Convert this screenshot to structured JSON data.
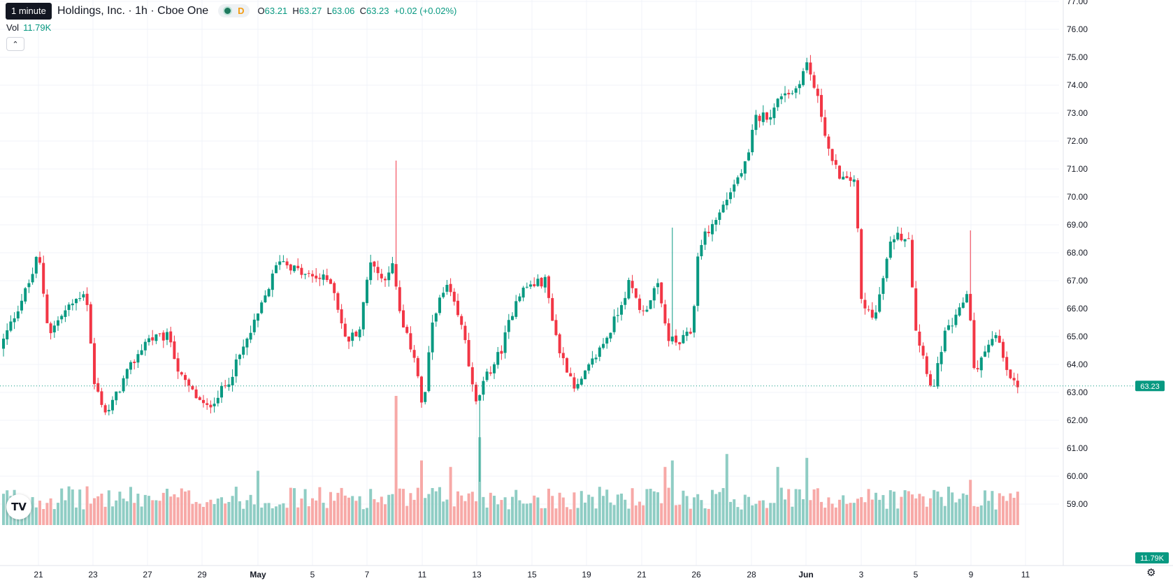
{
  "tooltip": {
    "text": "1 minute"
  },
  "header": {
    "title": "Holdings, Inc. · 1h · Cboe One",
    "status_letter": "D",
    "ohlc": {
      "o_label": "O",
      "o": "63.21",
      "h_label": "H",
      "h": "63.27",
      "l_label": "L",
      "l": "63.06",
      "c_label": "C",
      "c": "63.23",
      "change": "+0.02 (+0.02%)"
    },
    "vol_label": "Vol",
    "vol_value": "11.79K"
  },
  "icons": {
    "collapse": "chevron-up-icon",
    "logo": "tradingview-logo",
    "settings": "gear-icon"
  },
  "colors": {
    "up": "#089981",
    "down": "#f23645",
    "up_vol": "#8fcdc4",
    "down_vol": "#f7a9a7",
    "grid": "#f0f3fa",
    "price_line": "#089981"
  },
  "chart_data": {
    "type": "candlestick",
    "interval": "1h",
    "y_axis": {
      "ticks": [
        "59.00",
        "60.00",
        "61.00",
        "62.00",
        "63.00",
        "64.00",
        "65.00",
        "66.00",
        "67.00",
        "68.00",
        "69.00",
        "70.00",
        "71.00",
        "72.00",
        "73.00",
        "74.00",
        "75.00",
        "76.00",
        "77.00"
      ],
      "ylim": [
        58.2,
        77.0
      ]
    },
    "x_axis": {
      "ticks": [
        "21",
        "23",
        "27",
        "29",
        "May",
        "5",
        "7",
        "11",
        "13",
        "15",
        "19",
        "21",
        "26",
        "28",
        "Jun",
        "3",
        "5",
        "9",
        "11"
      ]
    },
    "last_price": "63.23",
    "last_volume": "11.79K",
    "anchors": [
      {
        "x": 0,
        "p": 64.3
      },
      {
        "x": 50,
        "p": 67.1
      },
      {
        "x": 60,
        "p": 68.0
      },
      {
        "x": 75,
        "p": 65.1
      },
      {
        "x": 95,
        "p": 65.8
      },
      {
        "x": 128,
        "p": 66.7
      },
      {
        "x": 140,
        "p": 63.3
      },
      {
        "x": 158,
        "p": 62.2
      },
      {
        "x": 185,
        "p": 63.6
      },
      {
        "x": 215,
        "p": 64.9
      },
      {
        "x": 248,
        "p": 65.0
      },
      {
        "x": 262,
        "p": 63.6
      },
      {
        "x": 300,
        "p": 62.4
      },
      {
        "x": 330,
        "p": 63.3
      },
      {
        "x": 372,
        "p": 65.6
      },
      {
        "x": 405,
        "p": 67.8
      },
      {
        "x": 440,
        "p": 67.2
      },
      {
        "x": 480,
        "p": 67.0
      },
      {
        "x": 500,
        "p": 64.8
      },
      {
        "x": 520,
        "p": 65.3
      },
      {
        "x": 535,
        "p": 67.8
      },
      {
        "x": 552,
        "p": 67.0
      },
      {
        "x": 566,
        "p": 67.6
      },
      {
        "x": 580,
        "p": 65.4
      },
      {
        "x": 600,
        "p": 64.2
      },
      {
        "x": 610,
        "p": 62.2
      },
      {
        "x": 625,
        "p": 65.8
      },
      {
        "x": 645,
        "p": 66.8
      },
      {
        "x": 670,
        "p": 65.0
      },
      {
        "x": 685,
        "p": 62.5
      },
      {
        "x": 700,
        "p": 63.5
      },
      {
        "x": 722,
        "p": 64.5
      },
      {
        "x": 745,
        "p": 66.5
      },
      {
        "x": 760,
        "p": 66.8
      },
      {
        "x": 785,
        "p": 67.0
      },
      {
        "x": 805,
        "p": 64.5
      },
      {
        "x": 830,
        "p": 63.1
      },
      {
        "x": 855,
        "p": 64.2
      },
      {
        "x": 878,
        "p": 65.2
      },
      {
        "x": 905,
        "p": 66.9
      },
      {
        "x": 925,
        "p": 65.8
      },
      {
        "x": 945,
        "p": 66.9
      },
      {
        "x": 960,
        "p": 65.0
      },
      {
        "x": 975,
        "p": 64.7
      },
      {
        "x": 995,
        "p": 65.2
      },
      {
        "x": 1005,
        "p": 68.3
      },
      {
        "x": 1030,
        "p": 69.2
      },
      {
        "x": 1050,
        "p": 70.2
      },
      {
        "x": 1075,
        "p": 71.3
      },
      {
        "x": 1085,
        "p": 72.8
      },
      {
        "x": 1110,
        "p": 73.0
      },
      {
        "x": 1125,
        "p": 73.8
      },
      {
        "x": 1140,
        "p": 73.7
      },
      {
        "x": 1160,
        "p": 74.8
      },
      {
        "x": 1178,
        "p": 73.2
      },
      {
        "x": 1195,
        "p": 71.2
      },
      {
        "x": 1215,
        "p": 70.5
      },
      {
        "x": 1228,
        "p": 70.7
      },
      {
        "x": 1238,
        "p": 66.0
      },
      {
        "x": 1258,
        "p": 65.8
      },
      {
        "x": 1272,
        "p": 67.5
      },
      {
        "x": 1282,
        "p": 68.6
      },
      {
        "x": 1305,
        "p": 68.6
      },
      {
        "x": 1315,
        "p": 65.3
      },
      {
        "x": 1340,
        "p": 63.0
      },
      {
        "x": 1355,
        "p": 65.0
      },
      {
        "x": 1375,
        "p": 65.7
      },
      {
        "x": 1390,
        "p": 66.7
      },
      {
        "x": 1400,
        "p": 63.5
      },
      {
        "x": 1420,
        "p": 64.9
      },
      {
        "x": 1432,
        "p": 65.0
      },
      {
        "x": 1445,
        "p": 63.7
      },
      {
        "x": 1460,
        "p": 63.2
      }
    ],
    "spikes": [
      {
        "x": 566,
        "high": 71.3,
        "vol": 1.0
      },
      {
        "x": 685,
        "low": 59.8,
        "vol": 0.68
      },
      {
        "x": 960,
        "high": 68.9,
        "vol": 0.5
      },
      {
        "x": 1235,
        "low": 64.9,
        "vol": 0.45
      },
      {
        "x": 1390,
        "high": 68.8,
        "vol": 0.35
      },
      {
        "x": 1040,
        "vol": 0.55
      },
      {
        "x": 1155,
        "vol": 0.52
      },
      {
        "x": 605,
        "vol": 0.5
      },
      {
        "x": 762,
        "vol": 0.45
      },
      {
        "x": 952,
        "vol": 0.45
      },
      {
        "x": 1113,
        "vol": 0.45
      },
      {
        "x": 370,
        "vol": 0.42
      },
      {
        "x": 645,
        "vol": 0.45
      }
    ]
  }
}
